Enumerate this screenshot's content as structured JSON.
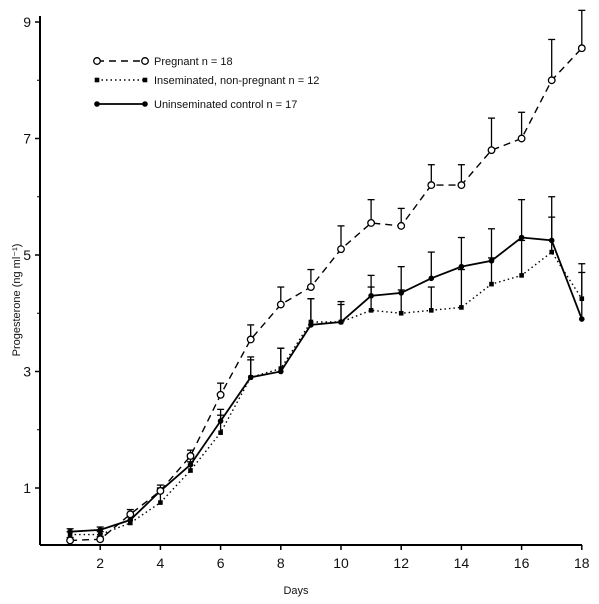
{
  "chart_data": {
    "type": "line",
    "xlabel": "Days",
    "ylabel": "Progesterone (ng ml⁻¹)",
    "xlim": [
      0,
      18
    ],
    "ylim": [
      0,
      9
    ],
    "x_ticks": [
      2,
      4,
      6,
      8,
      10,
      12,
      14,
      16,
      18
    ],
    "x_tick_labels": [
      "2",
      "4",
      "6",
      "8",
      "10",
      "12",
      "14",
      "16",
      "18"
    ],
    "y_ticks": [
      1,
      3,
      5,
      7,
      9
    ],
    "y_tick_labels": [
      "1",
      "3",
      "5",
      "7",
      "9"
    ],
    "grid": false,
    "legend_position": "top-left",
    "x": [
      1,
      2,
      3,
      4,
      5,
      6,
      7,
      8,
      9,
      10,
      11,
      12,
      13,
      14,
      15,
      16,
      17,
      18
    ],
    "series": [
      {
        "name": "Pregnant n = 18",
        "line_style": "dashed",
        "marker": "open-circle",
        "values": [
          0.1,
          0.12,
          0.55,
          0.95,
          1.55,
          2.6,
          3.55,
          4.15,
          4.45,
          5.1,
          5.55,
          5.5,
          6.2,
          6.2,
          6.8,
          7.0,
          8.0,
          8.55
        ],
        "errors": [
          0.05,
          0.05,
          0.08,
          0.05,
          0.1,
          0.2,
          0.25,
          0.3,
          0.3,
          0.4,
          0.4,
          0.3,
          0.35,
          0.35,
          0.55,
          0.45,
          0.7,
          0.65
        ]
      },
      {
        "name": "Inseminated, non-pregnant n = 12",
        "line_style": "dotted",
        "marker": "filled-square",
        "values": [
          0.2,
          0.2,
          0.4,
          0.75,
          1.3,
          1.95,
          2.9,
          3.05,
          3.85,
          3.85,
          4.05,
          4.0,
          4.05,
          4.1,
          4.5,
          4.65,
          5.05,
          4.25
        ],
        "errors": [
          0.05,
          0.05,
          0.1,
          0.3,
          0.15,
          0.3,
          0.35,
          0.35,
          0.4,
          0.35,
          0.4,
          0.4,
          0.4,
          0.65,
          0.45,
          0.6,
          0.6,
          0.45
        ]
      },
      {
        "name": "Uninseminated control n = 17",
        "line_style": "solid",
        "marker": "filled-circle",
        "values": [
          0.25,
          0.28,
          0.45,
          0.95,
          1.4,
          2.15,
          2.9,
          3.0,
          3.8,
          3.85,
          4.3,
          4.35,
          4.6,
          4.8,
          4.9,
          5.3,
          5.25,
          3.9
        ],
        "errors": [
          0.05,
          0.05,
          0.1,
          0.05,
          0.1,
          0.2,
          0.3,
          0.4,
          0.45,
          0.3,
          0.35,
          0.45,
          0.45,
          0.5,
          0.55,
          0.65,
          0.75,
          0.95
        ]
      }
    ]
  }
}
